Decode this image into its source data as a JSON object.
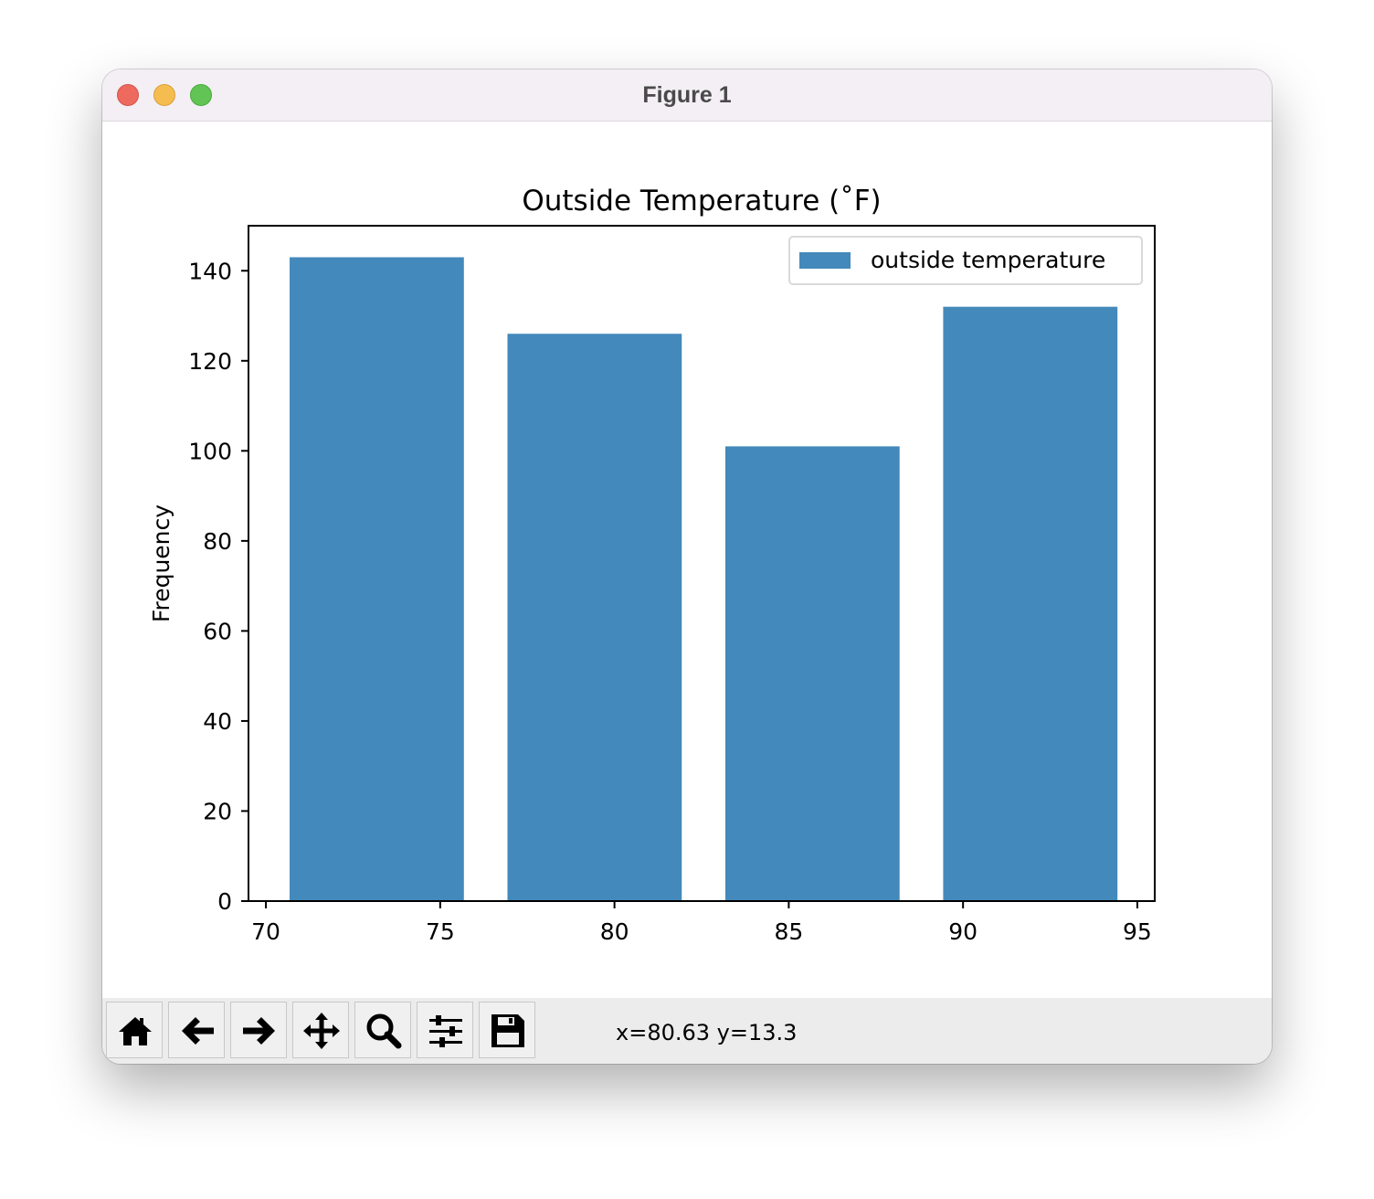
{
  "window": {
    "title": "Figure 1"
  },
  "toolbar": {
    "buttons": [
      {
        "name": "home-icon",
        "label": "Home"
      },
      {
        "name": "back-arrow-icon",
        "label": "Back"
      },
      {
        "name": "forward-arrow-icon",
        "label": "Forward"
      },
      {
        "name": "pan-icon",
        "label": "Pan"
      },
      {
        "name": "zoom-icon",
        "label": "Zoom"
      },
      {
        "name": "configure-subplots-icon",
        "label": "Configure subplots"
      },
      {
        "name": "save-icon",
        "label": "Save"
      }
    ],
    "coords": "x=80.63 y=13.3"
  },
  "colors": {
    "bar": "#4489bb",
    "titlebar": "#f3eff4",
    "toolbar": "#ececec"
  },
  "chart_data": {
    "type": "bar",
    "title": "Outside Temperature (˚F)",
    "xlabel": "",
    "ylabel": "Frequency",
    "xlim": [
      69.5,
      95.5
    ],
    "ylim": [
      0,
      150
    ],
    "xticks": [
      "70",
      "75",
      "80",
      "85",
      "90",
      "95"
    ],
    "yticks": [
      "0",
      "20",
      "40",
      "60",
      "80",
      "100",
      "120",
      "140"
    ],
    "legend": {
      "placement": "upper right",
      "entries": [
        "outside temperature"
      ]
    },
    "grid": false,
    "series": [
      {
        "name": "outside temperature",
        "bins": [
          {
            "x0": 70.68,
            "x1": 75.68,
            "value": 143
          },
          {
            "x0": 76.93,
            "x1": 81.93,
            "value": 126
          },
          {
            "x0": 83.18,
            "x1": 88.18,
            "value": 101
          },
          {
            "x0": 89.43,
            "x1": 94.43,
            "value": 132
          }
        ]
      }
    ]
  }
}
